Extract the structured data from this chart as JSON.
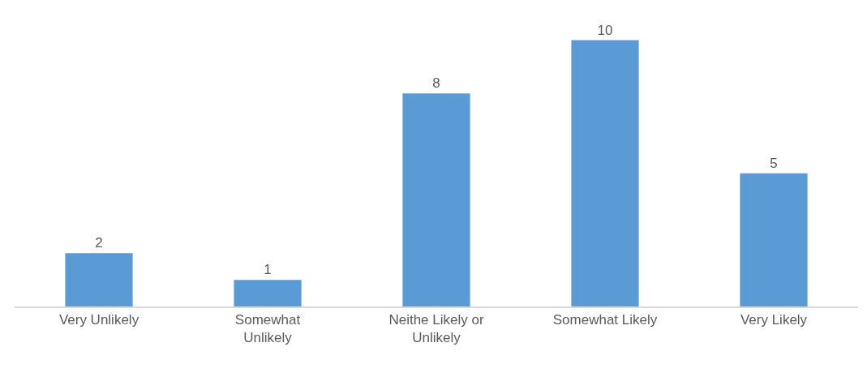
{
  "chart_data": {
    "type": "bar",
    "categories": [
      "Very Unlikely",
      "Somewhat Unlikely",
      "Neithe Likely or Unlikely",
      "Somewhat Likely",
      "Very Likely"
    ],
    "values": [
      2,
      1,
      8,
      10,
      5
    ],
    "color": "#5b9bd5",
    "data_labels": true
  }
}
